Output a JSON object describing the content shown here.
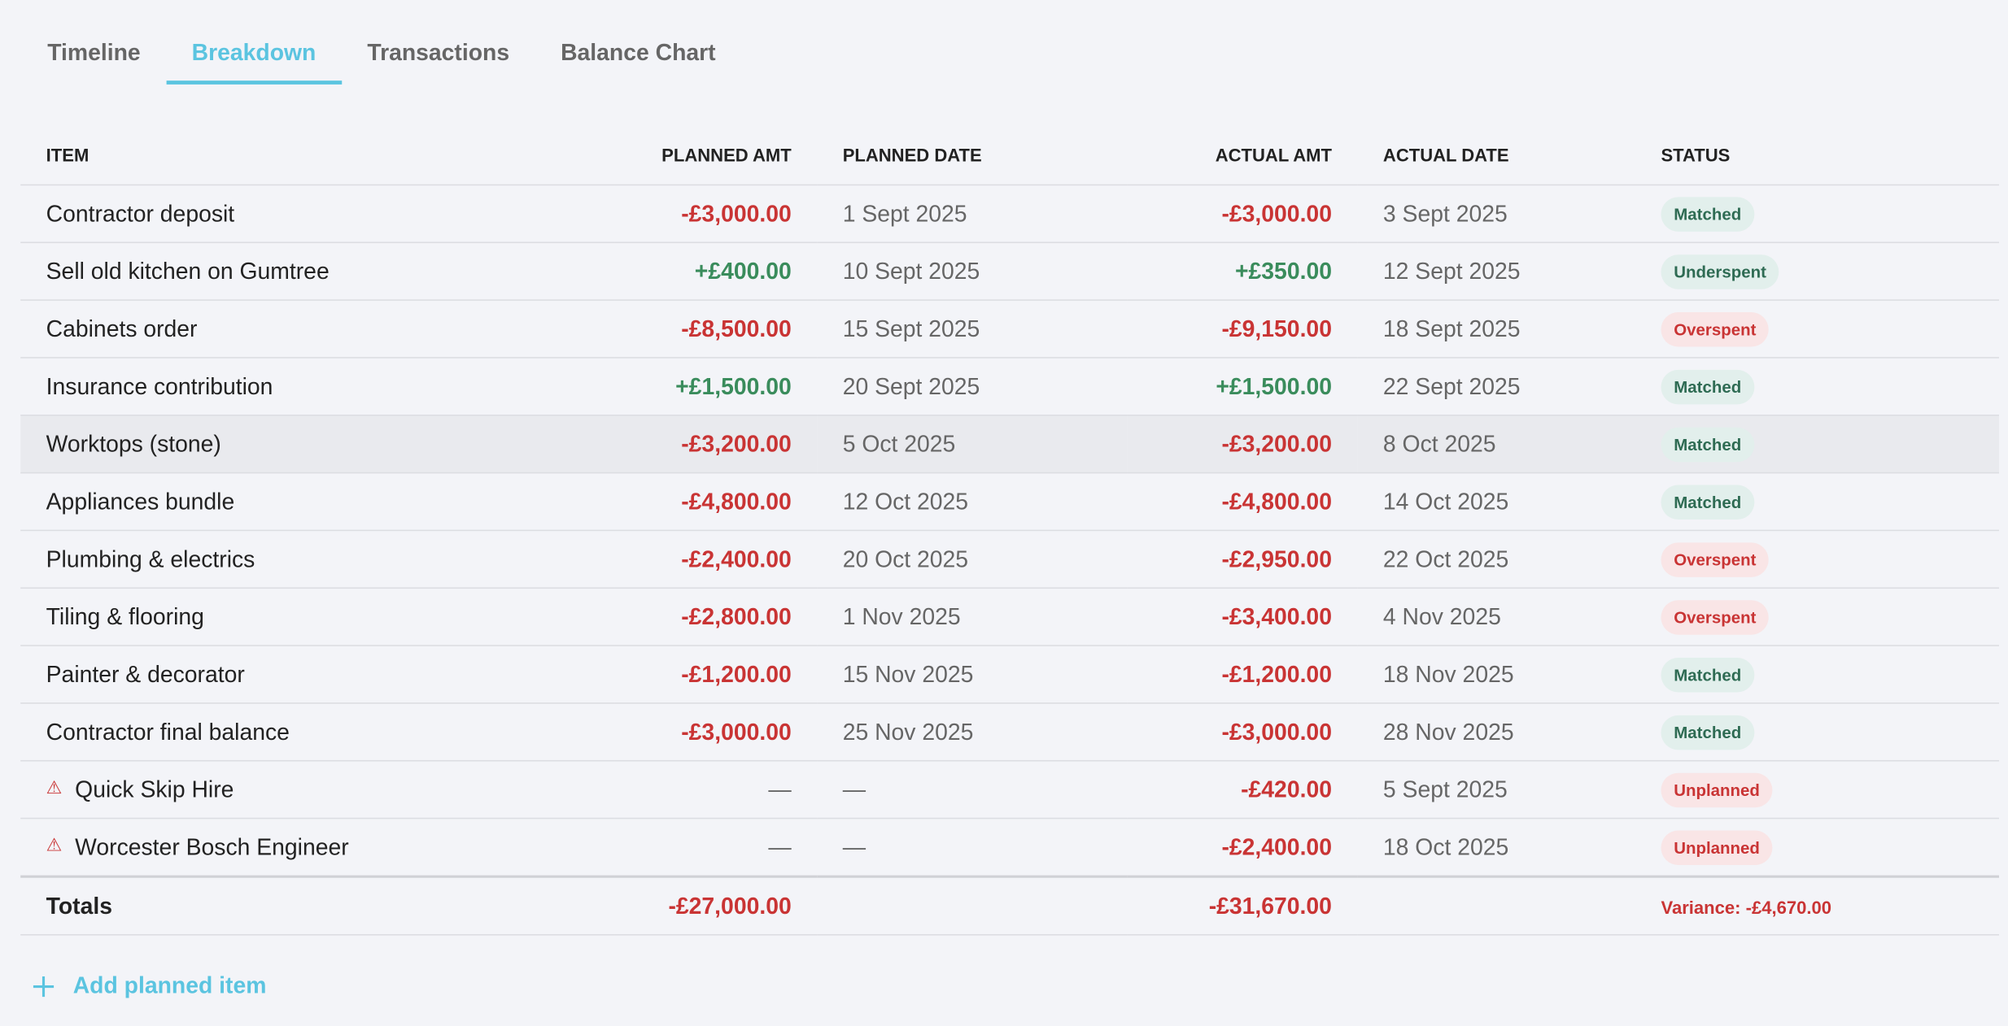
{
  "tabs": [
    "Timeline",
    "Breakdown",
    "Transactions",
    "Balance Chart"
  ],
  "active_tab": "Breakdown",
  "table": {
    "columns": [
      "ITEM",
      "PLANNED AMT",
      "PLANNED DATE",
      "ACTUAL AMT",
      "ACTUAL DATE",
      "STATUS"
    ],
    "rows": [
      [
        "Contractor deposit",
        "-£3,000.00",
        "1 Sept 2025",
        "-£3,000.00",
        "3 Sept 2025",
        "Matched"
      ],
      [
        "Sell old kitchen on Gumtree",
        "+£400.00",
        "10 Sept 2025",
        "+£350.00",
        "12 Sept 2025",
        "Underspent"
      ],
      [
        "Cabinets order",
        "-£8,500.00",
        "15 Sept 2025",
        "-£9,150.00",
        "18 Sept 2025",
        "Overspent"
      ],
      [
        "Insurance contribution",
        "+£1,500.00",
        "20 Sept 2025",
        "+£1,500.00",
        "22 Sept 2025",
        "Matched"
      ],
      [
        "Worktops (stone)",
        "-£3,200.00",
        "5 Oct 2025",
        "-£3,200.00",
        "8 Oct 2025",
        "Matched"
      ],
      [
        "Appliances bundle",
        "-£4,800.00",
        "12 Oct 2025",
        "-£4,800.00",
        "14 Oct 2025",
        "Matched"
      ],
      [
        "Plumbing & electrics",
        "-£2,400.00",
        "20 Oct 2025",
        "-£2,950.00",
        "22 Oct 2025",
        "Overspent"
      ],
      [
        "Tiling & flooring",
        "-£2,800.00",
        "1 Nov 2025",
        "-£3,400.00",
        "4 Nov 2025",
        "Overspent"
      ],
      [
        "Painter & decorator",
        "-£1,200.00",
        "15 Nov 2025",
        "-£1,200.00",
        "18 Nov 2025",
        "Matched"
      ],
      [
        "Contractor final balance",
        "-£3,000.00",
        "25 Nov 2025",
        "-£3,000.00",
        "28 Nov 2025",
        "Matched"
      ],
      [
        "Quick Skip Hire",
        "—",
        "—",
        "-£420.00",
        "5 Sept 2025",
        "Unplanned"
      ],
      [
        "Worcester Bosch Engineer",
        "—",
        "—",
        "-£2,400.00",
        "18 Oct 2025",
        "Unplanned"
      ]
    ],
    "totals": {
      "label": "Totals",
      "planned": "-£27,000.00",
      "actual": "-£31,670.00",
      "variance": "Variance: -£4,670.00"
    }
  },
  "add_button": "Add planned item"
}
